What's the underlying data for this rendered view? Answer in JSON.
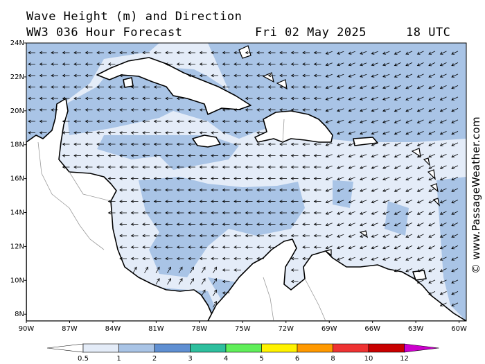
{
  "header": {
    "title": "Wave Height (m) and Direction",
    "model": "WW3 036 Hour Forecast",
    "date": "Fri 02 May 2025",
    "time": "18 UTC"
  },
  "copyright": "© www.PassageWeather.com",
  "map": {
    "lat_labels": [
      "24N",
      "22N",
      "20N",
      "18N",
      "16N",
      "14N",
      "12N",
      "10N",
      "8N"
    ],
    "lon_labels": [
      "90W",
      "87W",
      "84W",
      "81W",
      "78W",
      "75W",
      "72W",
      "69W",
      "66W",
      "63W",
      "60W"
    ],
    "lat_range": [
      7.6,
      24
    ],
    "lon_range": [
      -90,
      -59.5
    ]
  },
  "colorbar": {
    "labels": [
      "0.5",
      "1",
      "2",
      "3",
      "4",
      "5",
      "6",
      "8",
      "10",
      "12"
    ],
    "colors": [
      "#ffffff",
      "#e4ecf8",
      "#a9c4e6",
      "#5f8fd2",
      "#2ebf9e",
      "#60ef5a",
      "#fff200",
      "#ff9900",
      "#ee3232",
      "#c80000",
      "#cc00cc"
    ]
  },
  "colors": {
    "land": "#ffffff",
    "wave_low": "#e4ecf8",
    "wave_mid": "#a9c4e6",
    "coast": "#000000",
    "border": "#999999",
    "arrow": "#000000"
  }
}
